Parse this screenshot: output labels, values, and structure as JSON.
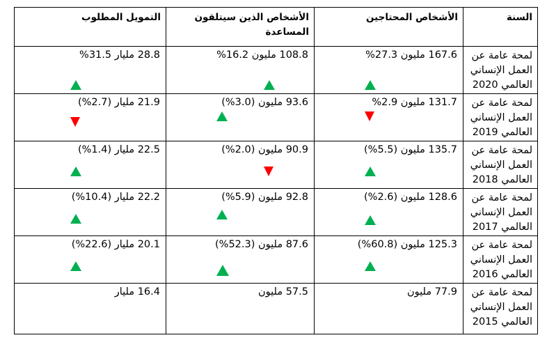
{
  "headers": {
    "year": "السنة",
    "people_in_need": "الأشخاص المحتاجين",
    "people_targeted": "الأشخاص الذين سيتلقون المساعدة",
    "funding_required": "التمويل المطلوب"
  },
  "rows": [
    {
      "year": "لمحة عامة عن العمل الإنساني العالمي 2020",
      "need": "167.6 مليون 27.3%",
      "need_trend": "up",
      "target": "108.8 مليون 16.2%",
      "target_trend": "up",
      "fund": "28.8 مليار  31.5%",
      "fund_trend": "up"
    },
    {
      "year": "لمحة عامة عن العمل الإنساني العالمي 2019",
      "need": "131.7 مليون 2.9%",
      "need_trend": "down",
      "target": "93.6 مليون (3.0%)",
      "target_trend": "up",
      "fund": "21.9 مليار (2.7%)",
      "fund_trend": "down"
    },
    {
      "year": "لمحة عامة عن العمل الإنساني العالمي 2018",
      "need": "135.7 مليون (5.5%)",
      "need_trend": "up",
      "target": "90.9 مليون (2.0%)",
      "target_trend": "down",
      "fund": "22.5 مليار (1.4%)",
      "fund_trend": "up"
    },
    {
      "year": "لمحة عامة عن العمل الإنساني العالمي 2017",
      "need": "128.6 مليون (2.6%)",
      "need_trend": "up",
      "target": "92.8 مليون (5.9%)",
      "target_trend": "up",
      "fund": "22.2 مليار (10.4%)",
      "fund_trend": "up"
    },
    {
      "year": "لمحة عامة عن العمل الإنساني العالمي 2016",
      "need": "125.3 مليون (60.8%)",
      "need_trend": "up",
      "target": "87.6 مليون (52.3%)",
      "target_trend": "up",
      "fund": "20.1 مليار (22.6%)",
      "fund_trend": "up"
    },
    {
      "year": "لمحة عامة عن العمل الإنساني العالمي 2015",
      "need": "77.9 مليون",
      "target": "57.5 مليون",
      "fund": "16.4 مليار"
    }
  ],
  "colors": {
    "up": "#00b050",
    "down": "#ff0000",
    "border": "#000000"
  }
}
